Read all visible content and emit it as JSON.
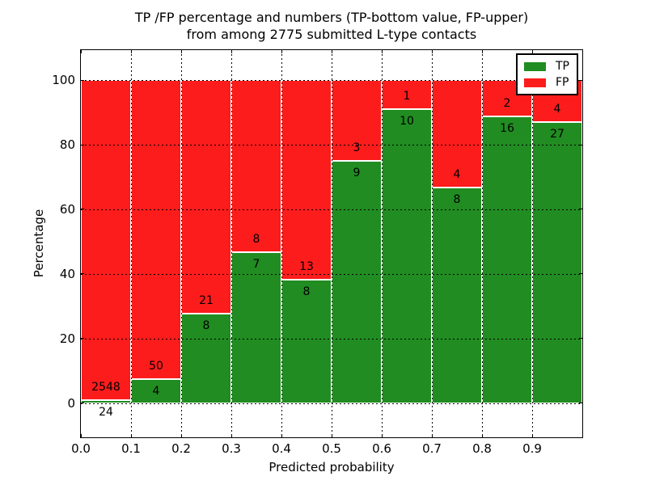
{
  "header": {
    "title_line1": "TP /FP percentage and numbers (TP-bottom value, FP-upper)",
    "title_line2": "from among 2775 submitted L-type contacts"
  },
  "chart_data": {
    "type": "bar",
    "stacked": true,
    "title": "TP /FP percentage and numbers (TP-bottom value, FP-upper) from among 2775 submitted L-type contacts",
    "xlabel": "Predicted probability",
    "ylabel": "Percentage",
    "total_submitted_contacts": 2775,
    "bin_edges": [
      0.0,
      0.1,
      0.2,
      0.3,
      0.4,
      0.5,
      0.6,
      0.7,
      0.8,
      0.9,
      1.0
    ],
    "series": [
      {
        "name": "TP",
        "color": "#218c21",
        "counts": [
          24,
          4,
          8,
          7,
          8,
          9,
          10,
          8,
          16,
          27
        ]
      },
      {
        "name": "FP",
        "color": "#fc1c1c",
        "counts": [
          2548,
          50,
          21,
          8,
          13,
          3,
          1,
          4,
          2,
          4
        ]
      }
    ],
    "tp_percent": [
      0.93,
      7.41,
      27.59,
      46.67,
      38.1,
      75.0,
      90.91,
      66.67,
      88.89,
      87.1
    ],
    "x_ticks": [
      "0.0",
      "0.1",
      "0.2",
      "0.3",
      "0.4",
      "0.5",
      "0.6",
      "0.7",
      "0.8",
      "0.9"
    ],
    "y_ticks": [
      0,
      20,
      40,
      60,
      80,
      100
    ],
    "xlim": [
      0.0,
      1.0
    ],
    "ylim": [
      -10.6,
      109.3
    ],
    "grid": "dotted",
    "legend_position": "upper right"
  }
}
